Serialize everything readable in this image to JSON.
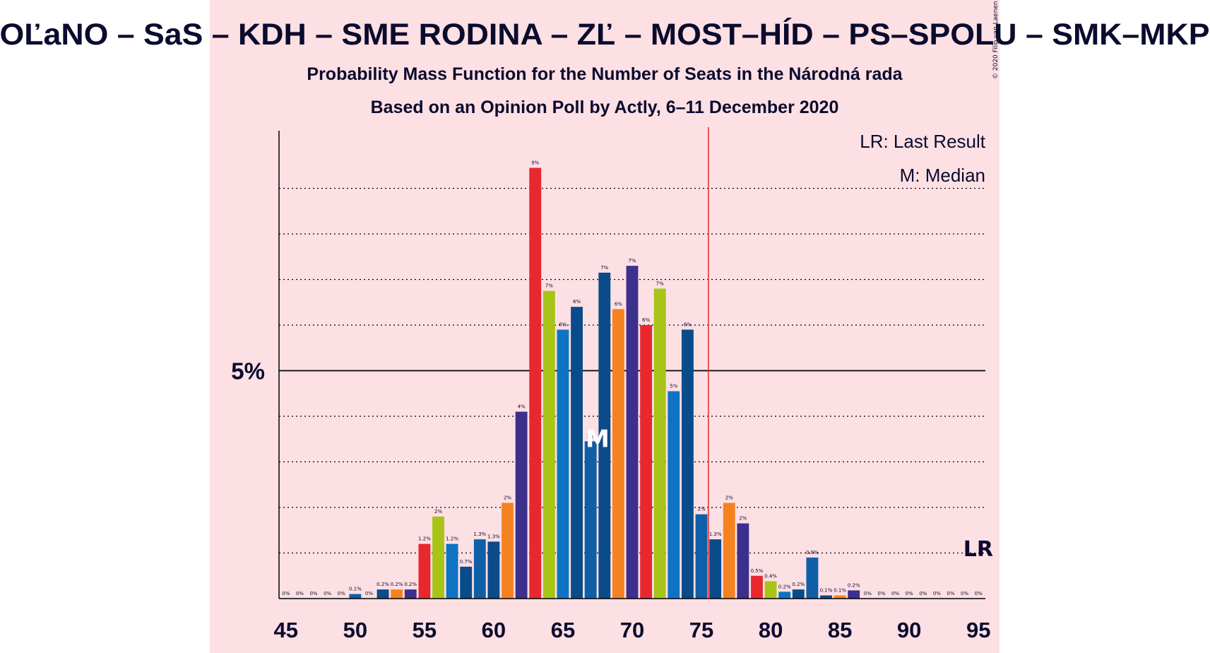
{
  "header": {
    "title": "OĽaNO – SaS – KDH – SME RODINA – ZĽ – MOST–HÍD – PS–SPOLU – SMK–MKP",
    "subtitle1": "Probability Mass Function for the Number of Seats in the Národná rada",
    "subtitle2": "Based on an Opinion Poll by Actly, 6–11 December 2020",
    "copyright": "© 2020 Filip van Laenen"
  },
  "legend": {
    "lr": "LR: Last Result",
    "median": "M: Median"
  },
  "markers": {
    "lr_label": "LR",
    "median_label": "M",
    "median_seat": 68,
    "last_result_seat": 76,
    "majority_threshold_seat": 75.5
  },
  "colors": {
    "background": "#ffffff",
    "band": "#fde0e3",
    "threshold_line": "#e8282e",
    "text": "#0b0b2e"
  },
  "chart_data": {
    "type": "bar",
    "title": "OĽaNO – SaS – KDH – SME RODINA – ZĽ – MOST–HÍD – PS–SPOLU – SMK–MKP",
    "xlabel": "",
    "ylabel": "",
    "xlim": [
      45,
      95
    ],
    "ylim": [
      0,
      10
    ],
    "y_tick_labels": [
      {
        "value": 5,
        "label": "5%"
      }
    ],
    "x_ticks": [
      45,
      50,
      55,
      60,
      65,
      70,
      75,
      80,
      85,
      90,
      95
    ],
    "grid": "dotted horizontal every 1%",
    "bars": [
      {
        "x": 45,
        "value": 0,
        "label": "0%",
        "color": "#e8282e"
      },
      {
        "x": 46,
        "value": 0,
        "label": "0%",
        "color": "#e8282e"
      },
      {
        "x": 47,
        "value": 0,
        "label": "0%",
        "color": "#e8282e"
      },
      {
        "x": 48,
        "value": 0,
        "label": "0%",
        "color": "#e8282e"
      },
      {
        "x": 49,
        "value": 0,
        "label": "0%",
        "color": "#e8282e"
      },
      {
        "x": 50,
        "value": 0.1,
        "label": "0.1%",
        "color": "#0e5fa8"
      },
      {
        "x": 51,
        "value": 0,
        "label": "0%",
        "color": "#0e5fa8"
      },
      {
        "x": 52,
        "value": 0.2,
        "label": "0.2%",
        "color": "#0a4b8a"
      },
      {
        "x": 53,
        "value": 0.2,
        "label": "0.2%",
        "color": "#f58220"
      },
      {
        "x": 54,
        "value": 0.2,
        "label": "0.2%",
        "color": "#3d2f8c"
      },
      {
        "x": 55,
        "value": 1.2,
        "label": "1.2%",
        "color": "#e8282e"
      },
      {
        "x": 56,
        "value": 1.8,
        "label": "2%",
        "color": "#a8c418"
      },
      {
        "x": 57,
        "value": 1.2,
        "label": "1.2%",
        "color": "#0e73c4"
      },
      {
        "x": 58,
        "value": 0.7,
        "label": "0.7%",
        "color": "#0a4b8a"
      },
      {
        "x": 59,
        "value": 1.3,
        "label": "1.3%",
        "color": "#0e5fa8"
      },
      {
        "x": 60,
        "value": 1.25,
        "label": "1.3%",
        "color": "#0a4b8a"
      },
      {
        "x": 61,
        "value": 2.1,
        "label": "2%",
        "color": "#f58220"
      },
      {
        "x": 62,
        "value": 4.1,
        "label": "4%",
        "color": "#3d2f8c"
      },
      {
        "x": 63,
        "value": 9.45,
        "label": "9%",
        "color": "#e8282e"
      },
      {
        "x": 64,
        "value": 6.75,
        "label": "7%",
        "color": "#a8c418"
      },
      {
        "x": 65,
        "value": 5.9,
        "label": "6%",
        "color": "#0e73c4"
      },
      {
        "x": 66,
        "value": 6.4,
        "label": "6%",
        "color": "#0a4b8a"
      },
      {
        "x": 67,
        "value": 3.45,
        "label": "3%",
        "color": "#0e5fa8"
      },
      {
        "x": 68,
        "value": 7.15,
        "label": "7%",
        "color": "#0a4b8a"
      },
      {
        "x": 69,
        "value": 6.35,
        "label": "6%",
        "color": "#f58220"
      },
      {
        "x": 70,
        "value": 7.3,
        "label": "7%",
        "color": "#3d2f8c"
      },
      {
        "x": 71,
        "value": 6.0,
        "label": "6%",
        "color": "#e8282e"
      },
      {
        "x": 72,
        "value": 6.8,
        "label": "7%",
        "color": "#a8c418"
      },
      {
        "x": 73,
        "value": 4.55,
        "label": "5%",
        "color": "#0e73c4"
      },
      {
        "x": 74,
        "value": 5.9,
        "label": "6%",
        "color": "#0a4b8a"
      },
      {
        "x": 75,
        "value": 1.85,
        "label": "2%",
        "color": "#0e5fa8"
      },
      {
        "x": 76,
        "value": 1.3,
        "label": "1.3%",
        "color": "#0a4b8a"
      },
      {
        "x": 77,
        "value": 2.1,
        "label": "2%",
        "color": "#f58220"
      },
      {
        "x": 78,
        "value": 1.65,
        "label": "2%",
        "color": "#3d2f8c"
      },
      {
        "x": 79,
        "value": 0.5,
        "label": "0.5%",
        "color": "#e8282e"
      },
      {
        "x": 80,
        "value": 0.38,
        "label": "0.4%",
        "color": "#a8c418"
      },
      {
        "x": 81,
        "value": 0.15,
        "label": "0.2%",
        "color": "#0e73c4"
      },
      {
        "x": 82,
        "value": 0.2,
        "label": "0.2%",
        "color": "#0a4b8a"
      },
      {
        "x": 83,
        "value": 0.9,
        "label": "0.9%",
        "color": "#0e5fa8"
      },
      {
        "x": 84,
        "value": 0.07,
        "label": "0.1%",
        "color": "#0a4b8a"
      },
      {
        "x": 85,
        "value": 0.07,
        "label": "0.1%",
        "color": "#f58220"
      },
      {
        "x": 86,
        "value": 0.18,
        "label": "0.2%",
        "color": "#3d2f8c"
      },
      {
        "x": 87,
        "value": 0,
        "label": "0%",
        "color": "#e8282e"
      },
      {
        "x": 88,
        "value": 0,
        "label": "0%",
        "color": "#a8c418"
      },
      {
        "x": 89,
        "value": 0,
        "label": "0%",
        "color": "#0e73c4"
      },
      {
        "x": 90,
        "value": 0,
        "label": "0%",
        "color": "#0a4b8a"
      },
      {
        "x": 91,
        "value": 0,
        "label": "0%",
        "color": "#0e5fa8"
      },
      {
        "x": 92,
        "value": 0,
        "label": "0%",
        "color": "#0a4b8a"
      },
      {
        "x": 93,
        "value": 0,
        "label": "0%",
        "color": "#f58220"
      },
      {
        "x": 94,
        "value": 0,
        "label": "0%",
        "color": "#3d2f8c"
      },
      {
        "x": 95,
        "value": 0,
        "label": "0%",
        "color": "#e8282e"
      }
    ]
  }
}
